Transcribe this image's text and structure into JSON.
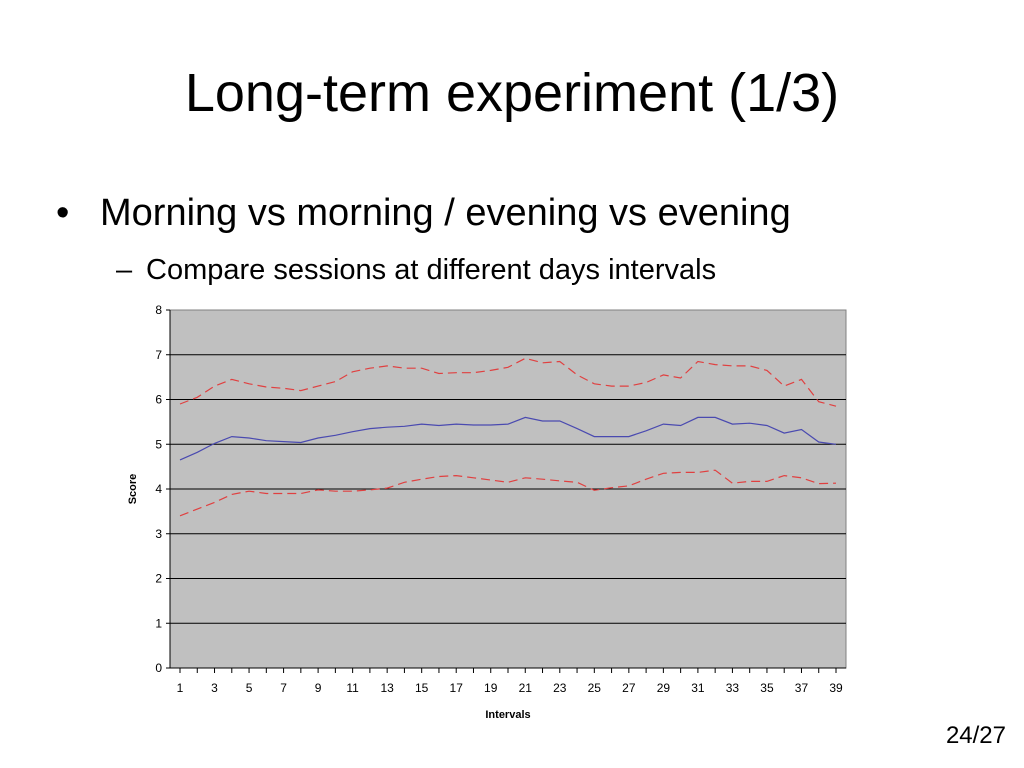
{
  "slide": {
    "title": "Long-term experiment (1/3)",
    "bullet": "Morning vs morning / evening vs evening",
    "sub_bullet": "Compare sessions at different days intervals",
    "page_number": "24/27"
  },
  "colors": {
    "plot_bg": "#c0c0c0",
    "grid": "#000000",
    "mean_line": "#4a4ab0",
    "bound_line": "#e04040"
  },
  "chart_data": {
    "type": "line",
    "xlabel": "Intervals",
    "ylabel": "Score",
    "ylim": [
      0,
      8
    ],
    "yticks": [
      0,
      1,
      2,
      3,
      4,
      5,
      6,
      7,
      8
    ],
    "x": [
      1,
      2,
      3,
      4,
      5,
      6,
      7,
      8,
      9,
      10,
      11,
      12,
      13,
      14,
      15,
      16,
      17,
      18,
      19,
      20,
      21,
      22,
      23,
      24,
      25,
      26,
      27,
      28,
      29,
      30,
      31,
      32,
      33,
      34,
      35,
      36,
      37,
      38,
      39
    ],
    "xtick_labels": [
      "1",
      "3",
      "5",
      "7",
      "9",
      "11",
      "13",
      "15",
      "17",
      "19",
      "21",
      "23",
      "25",
      "27",
      "29",
      "31",
      "33",
      "35",
      "37",
      "39"
    ],
    "grid": "horizontal",
    "legend": "none",
    "series": [
      {
        "style": "dashed",
        "color": "#e04040",
        "values": [
          5.9,
          6.05,
          6.3,
          6.45,
          6.35,
          6.28,
          6.25,
          6.2,
          6.3,
          6.4,
          6.62,
          6.7,
          6.75,
          6.7,
          6.7,
          6.58,
          6.6,
          6.6,
          6.65,
          6.72,
          6.92,
          6.82,
          6.85,
          6.55,
          6.35,
          6.3,
          6.3,
          6.38,
          6.55,
          6.48,
          6.85,
          6.78,
          6.75,
          6.75,
          6.65,
          6.3,
          6.45,
          5.95,
          5.85
        ]
      },
      {
        "style": "solid",
        "color": "#4a4ab0",
        "values": [
          4.65,
          4.82,
          5.02,
          5.17,
          5.14,
          5.08,
          5.06,
          5.04,
          5.14,
          5.2,
          5.28,
          5.35,
          5.38,
          5.4,
          5.45,
          5.42,
          5.45,
          5.43,
          5.43,
          5.45,
          5.6,
          5.52,
          5.52,
          5.35,
          5.17,
          5.17,
          5.17,
          5.3,
          5.45,
          5.42,
          5.6,
          5.6,
          5.45,
          5.47,
          5.42,
          5.25,
          5.33,
          5.05,
          5.0
        ]
      },
      {
        "style": "dashed",
        "color": "#e04040",
        "values": [
          3.4,
          3.55,
          3.7,
          3.88,
          3.95,
          3.9,
          3.9,
          3.9,
          3.98,
          3.95,
          3.95,
          3.98,
          4.02,
          4.15,
          4.22,
          4.28,
          4.3,
          4.25,
          4.2,
          4.15,
          4.25,
          4.22,
          4.18,
          4.15,
          3.97,
          4.03,
          4.07,
          4.22,
          4.35,
          4.37,
          4.37,
          4.42,
          4.13,
          4.17,
          4.17,
          4.3,
          4.25,
          4.12,
          4.13
        ]
      }
    ]
  }
}
